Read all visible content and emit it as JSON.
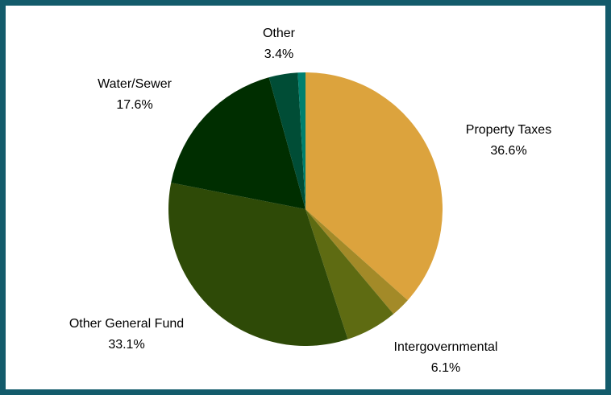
{
  "chart_data": {
    "type": "pie",
    "categories": [
      "Property Taxes",
      null,
      "Intergovernmental",
      "Other General Fund",
      "Water/Sewer",
      "Other",
      null
    ],
    "values": [
      36.6,
      2.3,
      6.1,
      33.1,
      17.6,
      3.4,
      0.9
    ],
    "value_labels": [
      "36.6%",
      null,
      "6.1%",
      "33.1%",
      "17.6%",
      "3.4%",
      null
    ],
    "colors": [
      "#dca33d",
      "#a38a28",
      "#5e6b12",
      "#2e4a07",
      "#002e00",
      "#004d36",
      "#00806e"
    ]
  }
}
